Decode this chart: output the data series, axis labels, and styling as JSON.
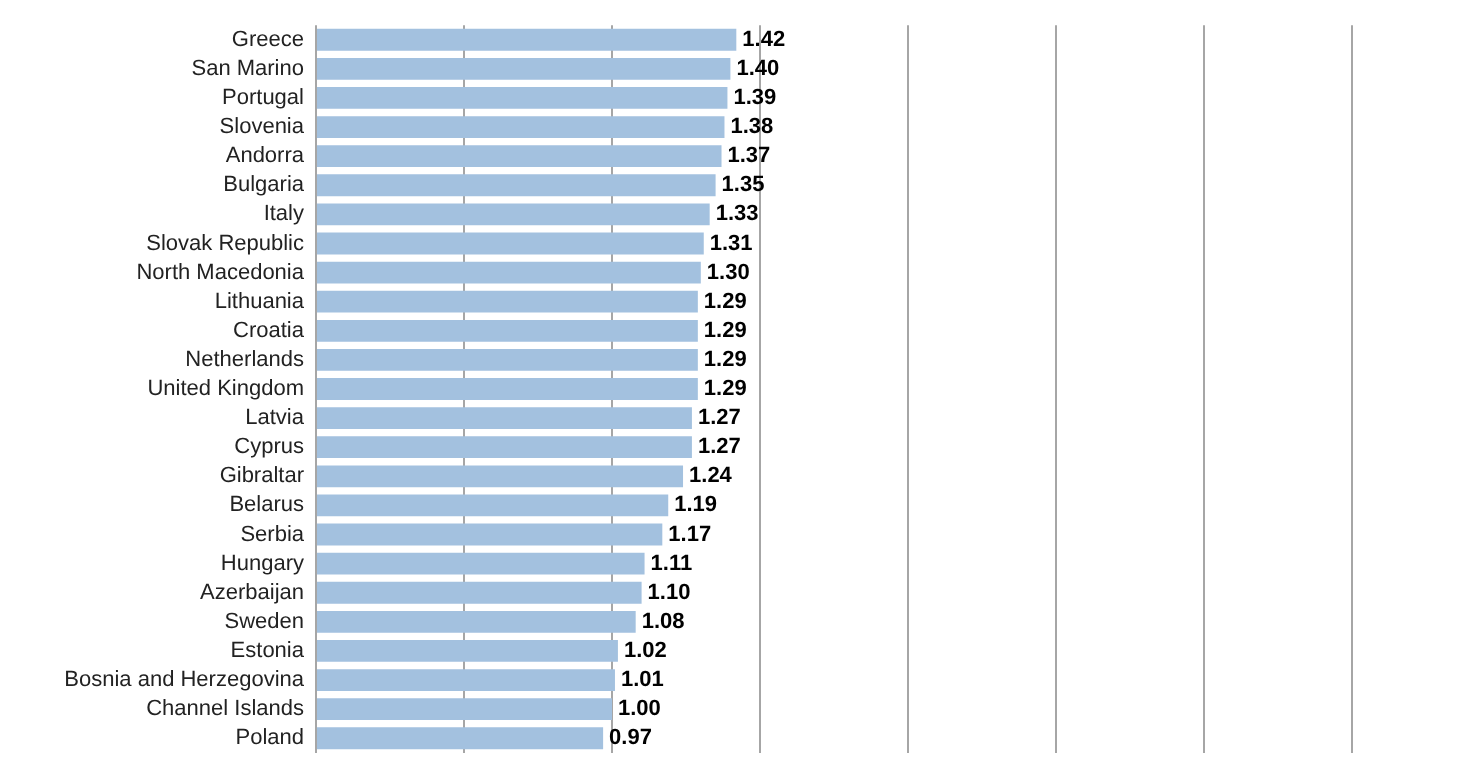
{
  "chart_data": {
    "type": "bar",
    "orientation": "horizontal",
    "categories": [
      "Greece",
      "San Marino",
      "Portugal",
      "Slovenia",
      "Andorra",
      "Bulgaria",
      "Italy",
      "Slovak Republic",
      "North Macedonia",
      "Lithuania",
      "Croatia",
      "Netherlands",
      "United Kingdom",
      "Latvia",
      "Cyprus",
      "Gibraltar",
      "Belarus",
      "Serbia",
      "Hungary",
      "Azerbaijan",
      "Sweden",
      "Estonia",
      "Bosnia and Herzegovina",
      "Channel Islands",
      "Poland"
    ],
    "values": [
      1.42,
      1.4,
      1.39,
      1.38,
      1.37,
      1.35,
      1.33,
      1.31,
      1.3,
      1.29,
      1.29,
      1.29,
      1.29,
      1.27,
      1.27,
      1.24,
      1.19,
      1.17,
      1.11,
      1.1,
      1.08,
      1.02,
      1.01,
      1.0,
      0.97
    ],
    "color": "#a3c1df",
    "xlim": [
      0,
      3.5
    ],
    "xticks": [
      0,
      0.5,
      1,
      1.5,
      2,
      2.5,
      3,
      3.5
    ],
    "value_labels": [
      "1.42",
      "1.40",
      "1.39",
      "1.38",
      "1.37",
      "1.35",
      "1.33",
      "1.31",
      "1.30",
      "1.29",
      "1.29",
      "1.29",
      "1.29",
      "1.27",
      "1.27",
      "1.24",
      "1.19",
      "1.17",
      "1.11",
      "1.10",
      "1.08",
      "1.02",
      "1.01",
      "1.00",
      "0.97"
    ],
    "grid": "x",
    "tick_labels": "y",
    "legend": false
  }
}
